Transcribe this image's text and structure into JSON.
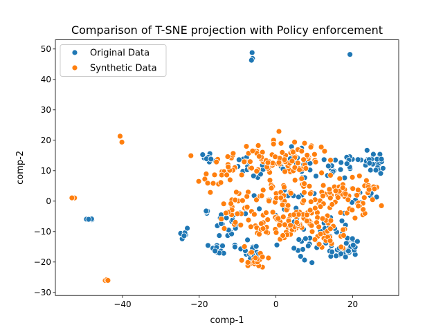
{
  "chart_data": {
    "type": "scatter",
    "title": "Comparison of T-SNE projection with Policy enforcement",
    "xlabel": "comp-1",
    "ylabel": "comp-2",
    "xlim": [
      -57.5,
      32
    ],
    "ylim": [
      -31,
      53
    ],
    "xticks": [
      -40,
      -20,
      0,
      20
    ],
    "yticks": [
      -30,
      -20,
      -10,
      0,
      10,
      20,
      30,
      40,
      50
    ],
    "grid": false,
    "legend_position": "top-left",
    "series": [
      {
        "name": "Original Data",
        "color": "#1f77b4",
        "clusters": [
          {
            "cx": -6,
            "cy": 47.5,
            "sx": 0.3,
            "sy": 0.8,
            "n": 3
          },
          {
            "cx": 19.3,
            "cy": 48.2,
            "sx": 0.1,
            "sy": 0.1,
            "n": 1
          },
          {
            "cx": -48.5,
            "cy": -6,
            "sx": 1.2,
            "sy": 0.1,
            "n": 4
          },
          {
            "cx": -24,
            "cy": -11.3,
            "sx": 0.9,
            "sy": 0.8,
            "n": 8
          },
          {
            "cx": -18,
            "cy": 14,
            "sx": 1.0,
            "sy": 0.8,
            "n": 10
          },
          {
            "cx": -18,
            "cy": -3.5,
            "sx": 0.6,
            "sy": 0.4,
            "n": 4
          },
          {
            "cx": -15,
            "cy": -16,
            "sx": 1.5,
            "sy": 1.0,
            "n": 12
          },
          {
            "cx": -12,
            "cy": -8,
            "sx": 2.0,
            "sy": 2.0,
            "n": 18
          },
          {
            "cx": -8,
            "cy": 12,
            "sx": 2.0,
            "sy": 2.0,
            "n": 15
          },
          {
            "cx": -7,
            "cy": -17,
            "sx": 2.0,
            "sy": 2.0,
            "n": 15
          },
          {
            "cx": 2,
            "cy": -1,
            "sx": 3.0,
            "sy": 3.0,
            "n": 20
          },
          {
            "cx": 7,
            "cy": 12,
            "sx": 3.0,
            "sy": 3.0,
            "n": 20
          },
          {
            "cx": 10,
            "cy": -14,
            "sx": 3.0,
            "sy": 3.0,
            "n": 20
          },
          {
            "cx": 15,
            "cy": 10,
            "sx": 2.0,
            "sy": 2.0,
            "n": 12
          },
          {
            "cx": 15,
            "cy": -8,
            "sx": 2.0,
            "sy": 2.0,
            "n": 15
          },
          {
            "cx": 18,
            "cy": -16,
            "sx": 2.5,
            "sy": 1.2,
            "n": 20
          },
          {
            "cx": 20,
            "cy": -13,
            "sx": 1.5,
            "sy": 1.5,
            "n": 10
          },
          {
            "cx": 22,
            "cy": 13,
            "sx": 2.5,
            "sy": 2.0,
            "n": 22
          },
          {
            "cx": 25,
            "cy": 12,
            "sx": 1.5,
            "sy": 1.5,
            "n": 10
          },
          {
            "cx": 22,
            "cy": 2,
            "sx": 1.8,
            "sy": 1.5,
            "n": 10
          },
          {
            "cx": 27.5,
            "cy": 13.8,
            "sx": 0.2,
            "sy": 0.2,
            "n": 1
          }
        ]
      },
      {
        "name": "Synthetic Data",
        "color": "#ff7f0e",
        "clusters": [
          {
            "cx": -40.5,
            "cy": 20,
            "sx": 0.3,
            "sy": 1.2,
            "n": 2
          },
          {
            "cx": -53,
            "cy": 1,
            "sx": 0.7,
            "sy": 0.1,
            "n": 3
          },
          {
            "cx": -44,
            "cy": -26.2,
            "sx": 0.5,
            "sy": 0.3,
            "n": 3
          },
          {
            "cx": -14,
            "cy": 10,
            "sx": 3.0,
            "sy": 3.0,
            "n": 28
          },
          {
            "cx": -10,
            "cy": -3,
            "sx": 2.5,
            "sy": 3.0,
            "n": 28
          },
          {
            "cx": -6,
            "cy": -19,
            "sx": 1.8,
            "sy": 1.5,
            "n": 20
          },
          {
            "cx": -4,
            "cy": 13,
            "sx": 3.0,
            "sy": 3.0,
            "n": 30
          },
          {
            "cx": -3,
            "cy": -8,
            "sx": 2.5,
            "sy": 2.5,
            "n": 25
          },
          {
            "cx": 0,
            "cy": 2,
            "sx": 3.0,
            "sy": 3.0,
            "n": 30
          },
          {
            "cx": 2,
            "cy": 14,
            "sx": 3.0,
            "sy": 3.0,
            "n": 30
          },
          {
            "cx": 4,
            "cy": -8,
            "sx": 2.5,
            "sy": 3.0,
            "n": 30
          },
          {
            "cx": 8,
            "cy": 13,
            "sx": 2.5,
            "sy": 2.5,
            "n": 25
          },
          {
            "cx": 9,
            "cy": -4,
            "sx": 3.0,
            "sy": 3.0,
            "n": 30
          },
          {
            "cx": 11,
            "cy": 1,
            "sx": 2.5,
            "sy": 2.5,
            "n": 20
          },
          {
            "cx": 14,
            "cy": -11,
            "sx": 2.5,
            "sy": 2.5,
            "n": 25
          },
          {
            "cx": 17,
            "cy": 4,
            "sx": 2.0,
            "sy": 3.0,
            "n": 20
          },
          {
            "cx": 20,
            "cy": -3,
            "sx": 2.5,
            "sy": 2.5,
            "n": 20
          },
          {
            "cx": 24,
            "cy": 4,
            "sx": 1.5,
            "sy": 1.5,
            "n": 12
          },
          {
            "cx": 27.5,
            "cy": -1.5,
            "sx": 0.2,
            "sy": 0.2,
            "n": 1
          }
        ]
      }
    ]
  }
}
